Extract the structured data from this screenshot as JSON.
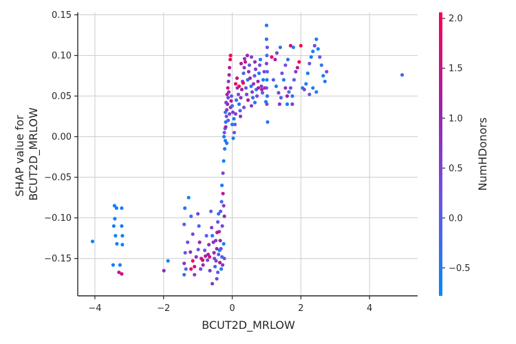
{
  "chart_data": {
    "type": "scatter",
    "xlabel": "BCUT2D_MRLOW",
    "ylabel_lines": [
      "SHAP value for",
      "BCUT2D_MRLOW"
    ],
    "xlim": [
      -4.5,
      5.4
    ],
    "ylim": [
      -0.196,
      0.153
    ],
    "xticks": [
      -4,
      -2,
      0,
      2,
      4
    ],
    "xtick_labels": [
      "−4",
      "−2",
      "0",
      "2",
      "4"
    ],
    "yticks": [
      -0.15,
      -0.1,
      -0.05,
      0.0,
      0.05,
      0.1,
      0.15
    ],
    "ytick_labels": [
      "−0.15",
      "−0.10",
      "−0.05",
      "0.00",
      "0.05",
      "0.10",
      "0.15"
    ],
    "grid": true,
    "colorbar": {
      "label": "NumHDonors",
      "range": [
        -0.78,
        2.06
      ],
      "ticks": [
        -0.5,
        0.0,
        0.5,
        1.0,
        1.5,
        2.0
      ],
      "tick_labels": [
        "−0.5",
        "0.0",
        "0.5",
        "1.0",
        "1.5",
        "2.0"
      ],
      "colormap": [
        "#008afb",
        "#6a54e8",
        "#9d23ab",
        "#ff0052"
      ]
    },
    "points": [
      [
        -4.07,
        -0.129,
        -0.6
      ],
      [
        -3.43,
        -0.085,
        -0.6
      ],
      [
        -3.37,
        -0.088,
        -0.6
      ],
      [
        -3.22,
        -0.088,
        -0.6
      ],
      [
        -3.42,
        -0.101,
        -0.6
      ],
      [
        -3.45,
        -0.11,
        -0.6
      ],
      [
        -3.4,
        -0.122,
        -0.6
      ],
      [
        -3.36,
        -0.132,
        -0.6
      ],
      [
        -3.22,
        -0.11,
        -0.6
      ],
      [
        -3.2,
        -0.122,
        -0.6
      ],
      [
        -3.2,
        -0.133,
        -0.6
      ],
      [
        -3.47,
        -0.158,
        -0.6
      ],
      [
        -3.27,
        -0.158,
        -0.6
      ],
      [
        -3.3,
        -0.167,
        1.3
      ],
      [
        -3.22,
        -0.169,
        1.7
      ],
      [
        -1.99,
        -0.165,
        0.9
      ],
      [
        -1.87,
        -0.153,
        -0.6
      ],
      [
        -1.38,
        -0.088,
        -0.5
      ],
      [
        -1.4,
        -0.108,
        0.0
      ],
      [
        -1.3,
        -0.13,
        0.2
      ],
      [
        -1.37,
        -0.143,
        0.3
      ],
      [
        -1.4,
        -0.156,
        0.8
      ],
      [
        -1.35,
        -0.163,
        0.0
      ],
      [
        -1.4,
        -0.17,
        -0.4
      ],
      [
        -1.2,
        -0.098,
        -0.3
      ],
      [
        -1.15,
        -0.12,
        0.4
      ],
      [
        -1.22,
        -0.142,
        0.9
      ],
      [
        -1.1,
        -0.16,
        1.6
      ],
      [
        -1.15,
        -0.153,
        2.0
      ],
      [
        -1.2,
        -0.163,
        1.9
      ],
      [
        -1.1,
        -0.17,
        0.6
      ],
      [
        -1.27,
        -0.075,
        -0.6
      ],
      [
        -1.0,
        -0.095,
        0.5
      ],
      [
        -0.97,
        -0.11,
        -0.2
      ],
      [
        -0.95,
        -0.13,
        1.1
      ],
      [
        -0.9,
        -0.15,
        1.4
      ],
      [
        -0.85,
        -0.158,
        0.9
      ],
      [
        -0.8,
        -0.14,
        0.2
      ],
      [
        -0.75,
        -0.122,
        0.0
      ],
      [
        -0.7,
        -0.145,
        1.2
      ],
      [
        -0.65,
        -0.165,
        0.7
      ],
      [
        -0.62,
        -0.092,
        0.1
      ],
      [
        -0.6,
        -0.112,
        0.6
      ],
      [
        -0.55,
        -0.13,
        0.9
      ],
      [
        -0.52,
        -0.15,
        0.3
      ],
      [
        -0.5,
        -0.16,
        -0.2
      ],
      [
        -0.45,
        -0.175,
        0.4
      ],
      [
        -0.58,
        -0.181,
        0.8
      ],
      [
        -0.4,
        -0.095,
        -0.5
      ],
      [
        -0.42,
        -0.105,
        0.2
      ],
      [
        -0.38,
        -0.117,
        0.9
      ],
      [
        -0.35,
        -0.128,
        1.1
      ],
      [
        -0.33,
        -0.138,
        0.5
      ],
      [
        -0.3,
        -0.148,
        -0.1
      ],
      [
        -0.28,
        -0.158,
        0.7
      ],
      [
        -0.45,
        -0.138,
        1.0
      ],
      [
        -0.4,
        -0.145,
        0.0
      ],
      [
        -0.36,
        -0.155,
        1.3
      ],
      [
        -0.32,
        -0.163,
        -0.4
      ],
      [
        -0.48,
        -0.128,
        0.6
      ],
      [
        -0.44,
        -0.118,
        1.5
      ],
      [
        -0.86,
        -0.152,
        1.8
      ],
      [
        -0.78,
        -0.147,
        1.2
      ],
      [
        -0.72,
        -0.152,
        0.3
      ],
      [
        -0.66,
        -0.148,
        1.7
      ],
      [
        -0.92,
        -0.163,
        0.4
      ],
      [
        -1.05,
        -0.148,
        0.8
      ],
      [
        -0.99,
        -0.139,
        0.2
      ],
      [
        -0.68,
        -0.133,
        0.9
      ],
      [
        -0.58,
        -0.122,
        -0.3
      ],
      [
        -0.53,
        -0.143,
        1.0
      ],
      [
        -0.47,
        -0.153,
        0.6
      ],
      [
        -0.42,
        -0.167,
        0.1
      ],
      [
        -0.37,
        -0.14,
        -0.5
      ],
      [
        -0.34,
        -0.092,
        0.3
      ],
      [
        -0.31,
        -0.08,
        -0.2
      ],
      [
        -0.29,
        -0.11,
        0.4
      ],
      [
        -0.25,
        -0.132,
        -0.6
      ],
      [
        -0.23,
        -0.15,
        0.2
      ],
      [
        -0.3,
        -0.06,
        -0.4
      ],
      [
        -0.27,
        -0.045,
        0.5
      ],
      [
        -0.25,
        -0.03,
        -0.6
      ],
      [
        -0.22,
        -0.015,
        -0.6
      ],
      [
        -0.2,
        -0.005,
        -0.5
      ],
      [
        -0.24,
        0.0,
        -0.6
      ],
      [
        -0.21,
        0.01,
        0.0
      ],
      [
        -0.19,
        0.018,
        -0.4
      ],
      [
        -0.17,
        0.025,
        0.3
      ],
      [
        -0.16,
        0.033,
        0.8
      ],
      [
        -0.14,
        0.04,
        1.1
      ],
      [
        -0.12,
        0.048,
        0.5
      ],
      [
        -0.1,
        0.055,
        0.9
      ],
      [
        -0.2,
        0.03,
        -0.2
      ],
      [
        -0.18,
        0.042,
        0.6
      ],
      [
        -0.15,
        0.052,
        1.2
      ],
      [
        -0.13,
        0.06,
        1.6
      ],
      [
        -0.11,
        0.068,
        0.7
      ],
      [
        -0.09,
        0.076,
        1.0
      ],
      [
        -0.08,
        0.085,
        1.4
      ],
      [
        -0.06,
        0.095,
        1.8
      ],
      [
        -0.05,
        0.1,
        2.0
      ],
      [
        -0.23,
        0.005,
        0.2
      ],
      [
        -0.19,
        0.012,
        1.0
      ],
      [
        -0.16,
        -0.008,
        -0.5
      ],
      [
        -0.12,
        0.02,
        0.0
      ],
      [
        -0.08,
        0.028,
        0.4
      ],
      [
        -0.05,
        0.036,
        0.8
      ],
      [
        -0.03,
        0.044,
        1.3
      ],
      [
        -0.02,
        0.05,
        0.2
      ],
      [
        0.0,
        0.038,
        -0.3
      ],
      [
        0.02,
        0.03,
        0.6
      ],
      [
        0.05,
        0.022,
        -0.6
      ],
      [
        0.08,
        0.015,
        0.1
      ],
      [
        0.1,
        0.028,
        0.4
      ],
      [
        0.12,
        0.045,
        -0.2
      ],
      [
        0.15,
        0.06,
        0.9
      ],
      [
        0.18,
        0.052,
        0.3
      ],
      [
        0.2,
        0.04,
        -0.5
      ],
      [
        0.23,
        0.032,
        0.0
      ],
      [
        0.25,
        0.048,
        0.7
      ],
      [
        0.28,
        0.058,
        1.2
      ],
      [
        0.3,
        0.068,
        0.4
      ],
      [
        0.33,
        0.078,
        -0.1
      ],
      [
        0.35,
        0.085,
        0.8
      ],
      [
        0.38,
        0.092,
        1.5
      ],
      [
        0.4,
        0.06,
        0.3
      ],
      [
        0.42,
        0.052,
        0.6
      ],
      [
        0.45,
        0.07,
        -0.4
      ],
      [
        0.48,
        0.08,
        0.9
      ],
      [
        0.5,
        0.088,
        0.2
      ],
      [
        0.52,
        0.072,
        1.0
      ],
      [
        0.55,
        0.062,
        -0.5
      ],
      [
        0.58,
        0.055,
        0.5
      ],
      [
        0.6,
        0.048,
        -0.2
      ],
      [
        0.62,
        0.065,
        0.8
      ],
      [
        0.65,
        0.075,
        0.1
      ],
      [
        0.68,
        0.083,
        0.6
      ],
      [
        0.7,
        0.058,
        -0.3
      ],
      [
        0.72,
        0.05,
        0.4
      ],
      [
        0.75,
        0.068,
        1.1
      ],
      [
        0.78,
        0.078,
        -0.6
      ],
      [
        0.8,
        0.088,
        0.3
      ],
      [
        0.82,
        0.095,
        -0.4
      ],
      [
        0.85,
        0.062,
        0.7
      ],
      [
        0.88,
        0.054,
        0.0
      ],
      [
        0.9,
        0.07,
        -0.5
      ],
      [
        0.93,
        0.08,
        0.5
      ],
      [
        0.95,
        0.06,
        1.3
      ],
      [
        0.98,
        0.043,
        -0.6
      ],
      [
        1.0,
        0.137,
        -0.5
      ],
      [
        1.0,
        0.12,
        -0.4
      ],
      [
        1.02,
        0.11,
        0.3
      ],
      [
        1.01,
        0.1,
        -0.2
      ],
      [
        1.0,
        0.09,
        0.5
      ],
      [
        1.02,
        0.08,
        0.0
      ],
      [
        1.01,
        0.07,
        -0.6
      ],
      [
        1.0,
        0.06,
        0.2
      ],
      [
        1.02,
        0.05,
        -0.3
      ],
      [
        1.01,
        0.04,
        0.4
      ],
      [
        1.03,
        0.018,
        -0.5
      ],
      [
        0.1,
        0.065,
        1.8
      ],
      [
        0.2,
        0.062,
        2.0
      ],
      [
        0.32,
        0.066,
        1.9
      ],
      [
        0.14,
        0.072,
        1.6
      ],
      [
        0.26,
        0.09,
        1.3
      ],
      [
        0.36,
        0.096,
        0.8
      ],
      [
        0.44,
        0.1,
        1.1
      ],
      [
        0.56,
        0.098,
        0.5
      ],
      [
        0.66,
        0.092,
        0.9
      ],
      [
        0.76,
        0.06,
        1.4
      ],
      [
        0.86,
        0.058,
        1.0
      ],
      [
        0.24,
        0.025,
        0.7
      ],
      [
        0.34,
        0.036,
        0.2
      ],
      [
        0.46,
        0.045,
        1.2
      ],
      [
        0.56,
        0.038,
        0.6
      ],
      [
        0.66,
        0.042,
        -0.4
      ],
      [
        0.0,
        0.015,
        -0.6
      ],
      [
        0.03,
        -0.002,
        -0.5
      ],
      [
        0.06,
        0.005,
        0.1
      ],
      [
        -0.27,
        -0.07,
        1.4
      ],
      [
        -0.25,
        -0.085,
        0.6
      ],
      [
        -0.23,
        -0.098,
        1.0
      ],
      [
        1.15,
        0.098,
        1.9
      ],
      [
        1.25,
        0.095,
        1.2
      ],
      [
        1.3,
        0.103,
        0.5
      ],
      [
        1.4,
        0.11,
        -0.3
      ],
      [
        1.45,
        0.078,
        0.2
      ],
      [
        1.5,
        0.07,
        -0.6
      ],
      [
        1.55,
        0.06,
        0.8
      ],
      [
        1.6,
        0.05,
        1.3
      ],
      [
        1.65,
        0.055,
        -0.2
      ],
      [
        1.7,
        0.06,
        0.4
      ],
      [
        1.75,
        0.05,
        -0.5
      ],
      [
        1.8,
        0.07,
        0.1
      ],
      [
        1.85,
        0.08,
        0.7
      ],
      [
        1.9,
        0.085,
        1.5
      ],
      [
        1.95,
        0.092,
        2.0
      ],
      [
        2.0,
        0.112,
        2.0
      ],
      [
        2.05,
        0.06,
        -0.4
      ],
      [
        2.1,
        0.058,
        0.3
      ],
      [
        1.2,
        0.07,
        0.0
      ],
      [
        1.28,
        0.062,
        -0.5
      ],
      [
        1.35,
        0.054,
        0.5
      ],
      [
        1.42,
        0.048,
        -0.1
      ],
      [
        1.38,
        0.04,
        0.9
      ],
      [
        1.6,
        0.04,
        -0.6
      ],
      [
        1.75,
        0.04,
        0.6
      ],
      [
        1.7,
        0.112,
        1.7
      ],
      [
        1.78,
        0.11,
        -0.6
      ],
      [
        1.55,
        0.088,
        0.3
      ],
      [
        1.62,
        0.095,
        -0.3
      ],
      [
        2.2,
        0.078,
        -0.6
      ],
      [
        2.25,
        0.09,
        0.2
      ],
      [
        2.3,
        0.098,
        -0.5
      ],
      [
        2.35,
        0.105,
        -0.6
      ],
      [
        2.4,
        0.112,
        0.4
      ],
      [
        2.45,
        0.12,
        -0.6
      ],
      [
        2.5,
        0.108,
        -0.6
      ],
      [
        2.55,
        0.098,
        0.0
      ],
      [
        2.6,
        0.088,
        -0.3
      ],
      [
        2.65,
        0.075,
        -0.6
      ],
      [
        2.7,
        0.068,
        -0.5
      ],
      [
        2.75,
        0.08,
        0.3
      ],
      [
        2.35,
        0.06,
        -0.6
      ],
      [
        2.45,
        0.055,
        -0.4
      ],
      [
        2.25,
        0.052,
        0.1
      ],
      [
        2.15,
        0.065,
        -0.6
      ],
      [
        4.95,
        0.076,
        -0.2
      ]
    ]
  }
}
